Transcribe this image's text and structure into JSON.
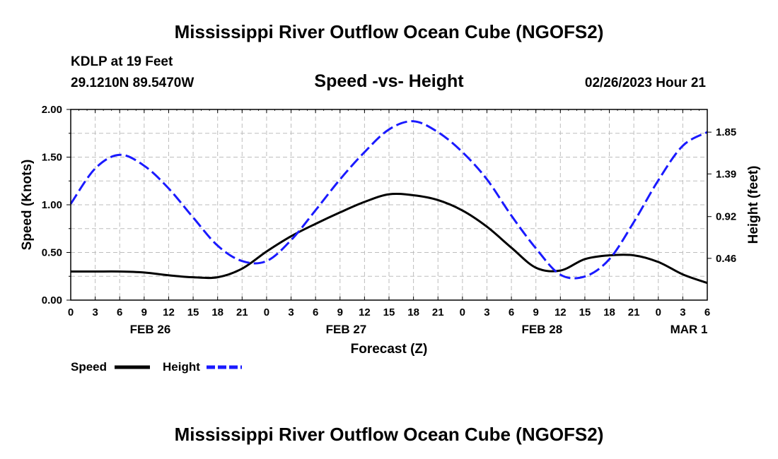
{
  "header": {
    "title": "Mississippi River Outflow Ocean Cube (NGOFS2)",
    "station": "KDLP at 19 Feet",
    "coords": "29.1210N  89.5470W",
    "subtitle": "Speed -vs- Height",
    "datetime": "02/26/2023 Hour 21"
  },
  "footer": {
    "title": "Mississippi River Outflow Ocean Cube (NGOFS2)"
  },
  "legend": {
    "speed_label": "Speed",
    "height_label": "Height"
  },
  "colors": {
    "speed": "#000000",
    "height": "#1a1aff",
    "grid": "#bdbdbd"
  },
  "chart_data": {
    "type": "line",
    "xlabel": "Forecast (Z)",
    "ylabel": "Speed (Knots)",
    "y2label": "Height (feet)",
    "xlim": [
      0,
      78
    ],
    "ylim": [
      0,
      2.0
    ],
    "y2lim": [
      0,
      2.1
    ],
    "x_ticks": [
      0,
      3,
      6,
      9,
      12,
      15,
      18,
      21,
      24,
      27,
      30,
      33,
      36,
      39,
      42,
      45,
      48,
      51,
      54,
      57,
      60,
      63,
      66,
      69,
      72,
      75,
      78
    ],
    "x_tick_labels": [
      "0",
      "3",
      "6",
      "9",
      "12",
      "15",
      "18",
      "21",
      "0",
      "3",
      "6",
      "9",
      "12",
      "15",
      "18",
      "21",
      "0",
      "3",
      "6",
      "9",
      "12",
      "15",
      "18",
      "21",
      "0",
      "3",
      "6"
    ],
    "y_ticks": [
      0.0,
      0.5,
      1.0,
      1.5,
      2.0
    ],
    "y_tick_labels": [
      "0.00",
      "0.50",
      "1.00",
      "1.50",
      "2.00"
    ],
    "y2_ticks": [
      0.46,
      0.92,
      1.39,
      1.85
    ],
    "y2_tick_labels": [
      "0.46",
      "0.92",
      "1.39",
      "1.85"
    ],
    "date_labels": [
      {
        "x": 9.75,
        "label": "FEB 26"
      },
      {
        "x": 33.75,
        "label": "FEB 27"
      },
      {
        "x": 57.75,
        "label": "FEB 28"
      },
      {
        "x": 75.75,
        "label": "MAR 1"
      }
    ],
    "series": [
      {
        "name": "Speed",
        "axis": "left",
        "x": [
          0,
          3,
          6,
          9,
          12,
          15,
          18,
          21,
          24,
          27,
          30,
          33,
          36,
          39,
          42,
          45,
          48,
          51,
          54,
          57,
          60,
          63,
          66,
          69,
          72,
          75,
          78
        ],
        "values": [
          0.3,
          0.3,
          0.3,
          0.29,
          0.26,
          0.24,
          0.24,
          0.33,
          0.51,
          0.67,
          0.8,
          0.92,
          1.03,
          1.11,
          1.1,
          1.05,
          0.94,
          0.77,
          0.55,
          0.34,
          0.31,
          0.43,
          0.47,
          0.47,
          0.4,
          0.27,
          0.18
        ]
      },
      {
        "name": "Height",
        "axis": "right",
        "x": [
          0,
          3,
          6,
          9,
          12,
          15,
          18,
          21,
          24,
          27,
          30,
          33,
          36,
          39,
          42,
          45,
          48,
          51,
          54,
          57,
          60,
          63,
          66,
          69,
          72,
          75,
          78
        ],
        "values": [
          1.06,
          1.45,
          1.6,
          1.48,
          1.23,
          0.91,
          0.6,
          0.43,
          0.43,
          0.66,
          0.99,
          1.33,
          1.63,
          1.88,
          1.97,
          1.85,
          1.63,
          1.33,
          0.93,
          0.57,
          0.28,
          0.26,
          0.45,
          0.86,
          1.32,
          1.7,
          1.85
        ]
      }
    ]
  }
}
